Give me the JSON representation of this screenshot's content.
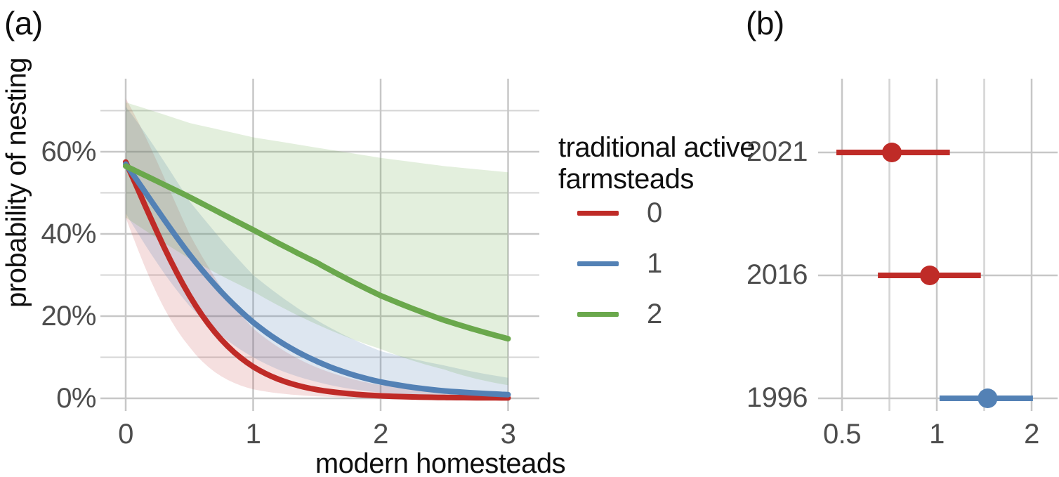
{
  "chart_data": [
    {
      "id": "a",
      "type": "line",
      "panel_tag": "(a)",
      "xlabel": "modern homesteads",
      "ylabel": "probability of nesting",
      "xlim": [
        -0.2,
        3.25
      ],
      "ylim": [
        0,
        0.778
      ],
      "grid": true,
      "x_ticks": [
        {
          "label": "0",
          "value": 0
        },
        {
          "label": "1",
          "value": 1
        },
        {
          "label": "2",
          "value": 2
        },
        {
          "label": "3",
          "value": 3
        }
      ],
      "y_ticks": [
        {
          "label": "0%",
          "value": 0
        },
        {
          "label": "20%",
          "value": 0.2
        },
        {
          "label": "40%",
          "value": 0.4
        },
        {
          "label": "60%",
          "value": 0.6
        }
      ],
      "y_minor_ticks": [
        0.1,
        0.3,
        0.5,
        0.7
      ],
      "legend": {
        "position": "right",
        "title_lines": [
          "traditional active",
          "farmsteads"
        ],
        "items": [
          {
            "label": "0",
            "color": "#bf2b27"
          },
          {
            "label": "1",
            "color": "#5381b5"
          },
          {
            "label": "2",
            "color": "#6aa84c"
          }
        ]
      },
      "x": [
        0,
        0.5,
        1,
        1.5,
        2,
        2.5,
        3
      ],
      "series": [
        {
          "name": "0",
          "color": "#bf2b27",
          "band_opacity": 0.15,
          "values": [
            0.575,
            0.25,
            0.077,
            0.021,
            0.006,
            0.002,
            0.001
          ],
          "upper": [
            0.73,
            0.4,
            0.17,
            0.075,
            0.032,
            0.02,
            0.013
          ],
          "lower": [
            0.44,
            0.125,
            0.022,
            0.005,
            0.001,
            0.0005,
            0.0002
          ]
        },
        {
          "name": "1",
          "color": "#5381b5",
          "band_opacity": 0.2,
          "values": [
            0.57,
            0.35,
            0.185,
            0.09,
            0.04,
            0.018,
            0.009
          ],
          "upper": [
            0.71,
            0.48,
            0.3,
            0.19,
            0.115,
            0.08,
            0.05
          ],
          "lower": [
            0.45,
            0.225,
            0.1,
            0.04,
            0.014,
            0.005,
            0.002
          ]
        },
        {
          "name": "2",
          "color": "#6aa84c",
          "band_opacity": 0.19,
          "values": [
            0.565,
            0.49,
            0.41,
            0.33,
            0.25,
            0.19,
            0.145
          ],
          "upper": [
            0.72,
            0.67,
            0.635,
            0.61,
            0.585,
            0.565,
            0.55
          ],
          "lower": [
            0.44,
            0.34,
            0.26,
            0.18,
            0.12,
            0.07,
            0.032
          ]
        }
      ]
    },
    {
      "id": "b",
      "type": "scatter",
      "panel_tag": "(b)",
      "xlabel": "",
      "x_scale": "log2",
      "xlim": [
        0.42,
        2.44
      ],
      "x_ticks": [
        {
          "label": "0.5",
          "value": 0.5
        },
        {
          "label": "1",
          "value": 1
        },
        {
          "label": "2",
          "value": 2
        }
      ],
      "x_minor_ticks": [
        0.7071,
        1.4142
      ],
      "categories": [
        "2021",
        "2016",
        "1996"
      ],
      "rows": [
        {
          "label": "2021",
          "estimate": 0.72,
          "ci_low": 0.48,
          "ci_high": 1.1,
          "color": "#bf2b27"
        },
        {
          "label": "2016",
          "estimate": 0.95,
          "ci_low": 0.65,
          "ci_high": 1.38,
          "color": "#bf2b27"
        },
        {
          "label": "1996",
          "estimate": 1.45,
          "ci_low": 1.02,
          "ci_high": 2.02,
          "color": "#5381b5"
        }
      ]
    }
  ],
  "style": {
    "grid_major_color": "#c7c7c7",
    "grid_minor_color": "#d4d4d4",
    "tick_text_color": "#4d4d4d",
    "title_text_color": "#0f0f0f",
    "background": "#ffffff"
  }
}
